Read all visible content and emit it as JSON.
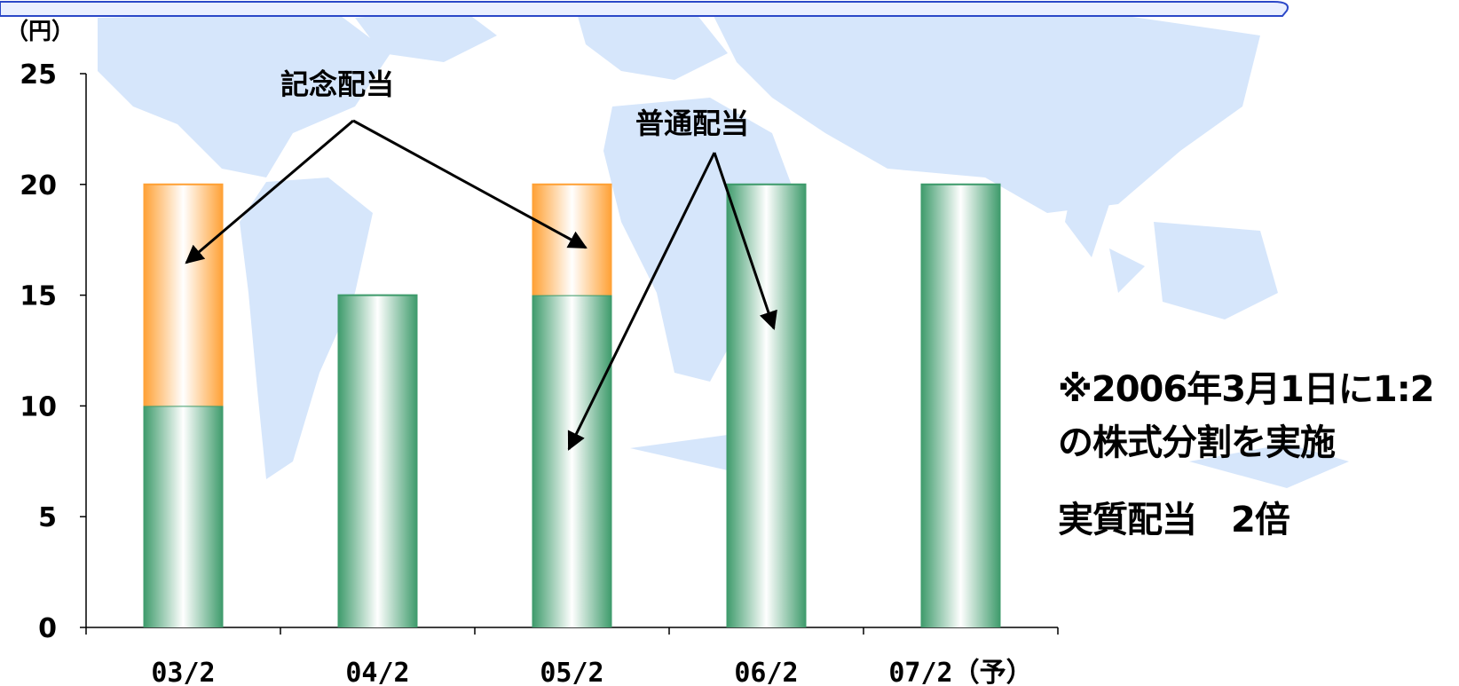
{
  "chart_data": {
    "type": "bar",
    "stacked": true,
    "unit_label": "（円）",
    "categories": [
      "03/2",
      "04/2",
      "05/2",
      "06/2",
      "07/2（予）"
    ],
    "series": [
      {
        "name": "普通配当",
        "values": [
          10,
          15,
          15,
          20,
          20
        ],
        "color": "#3c9a6a"
      },
      {
        "name": "記念配当",
        "values": [
          10,
          0,
          5,
          0,
          0
        ],
        "color": "#ffa033"
      }
    ],
    "ylim": [
      0,
      25
    ],
    "yticks": [
      0,
      5,
      10,
      15,
      20,
      25
    ],
    "grid": false,
    "annotations": {
      "commemorative_label": "記念配当",
      "ordinary_label": "普通配当"
    }
  },
  "notes": {
    "split_line1": "※2006年3月1日に1:2",
    "split_line2": "の株式分割を実施",
    "effective": "実質配当　2倍"
  },
  "colors": {
    "background_map": "#d6e6fb",
    "header_band": "#2b48c8",
    "axis": "#000000"
  }
}
